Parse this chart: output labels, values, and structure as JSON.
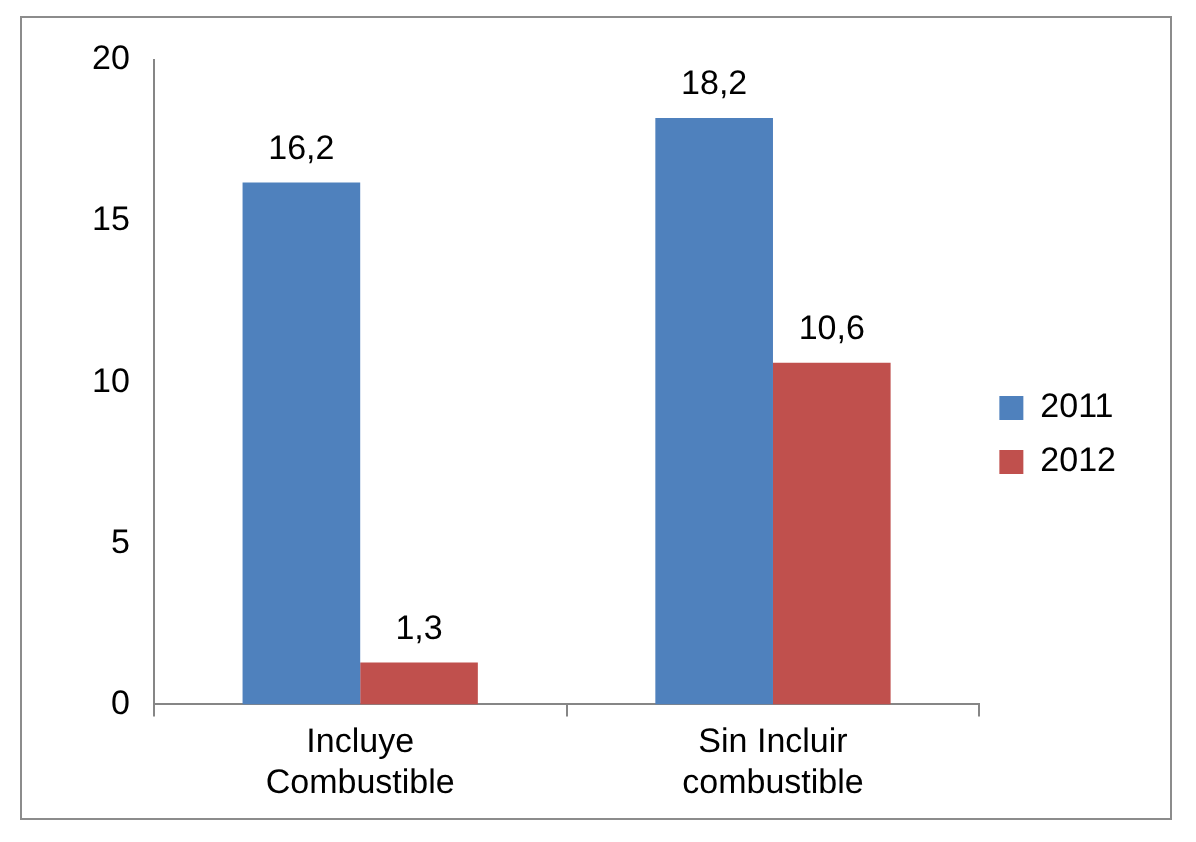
{
  "chart_data": {
    "type": "bar",
    "categories": [
      "Incluye Combustible",
      "Sin Incluir combustible"
    ],
    "series": [
      {
        "name": "2011",
        "color": "#4f81bd",
        "values": [
          16.2,
          18.2
        ],
        "value_labels": [
          "16,2",
          "18,2"
        ]
      },
      {
        "name": "2012",
        "color": "#c0504d",
        "values": [
          1.3,
          10.6
        ],
        "value_labels": [
          "1,3",
          "10,6"
        ]
      }
    ],
    "ylim": [
      0,
      20
    ],
    "yticks": [
      0,
      5,
      10,
      15,
      20
    ],
    "grid": false,
    "legend": "right"
  }
}
